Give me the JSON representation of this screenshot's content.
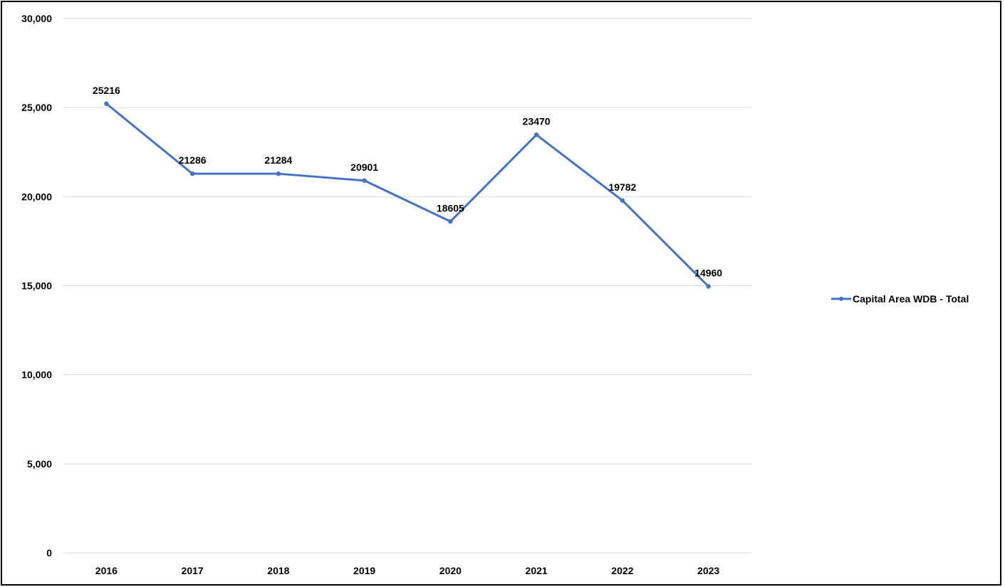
{
  "chart_data": {
    "type": "line",
    "title": "",
    "xlabel": "",
    "ylabel": "",
    "categories": [
      "2016",
      "2017",
      "2018",
      "2019",
      "2020",
      "2021",
      "2022",
      "2023"
    ],
    "series": [
      {
        "name": "Capital Area WDB - Total",
        "values": [
          25216,
          21286,
          21284,
          20901,
          18605,
          23470,
          19782,
          14960
        ],
        "color": "#4472C4"
      }
    ],
    "ylim": [
      0,
      30000
    ],
    "yticks": [
      0,
      5000,
      10000,
      15000,
      20000,
      25000,
      30000
    ],
    "ytick_labels": [
      "0",
      "5,000",
      "10,000",
      "15,000",
      "20,000",
      "25,000",
      "30,000"
    ],
    "data_labels": [
      "25216",
      "21286",
      "21284",
      "20901",
      "18605",
      "23470",
      "19782",
      "14960"
    ],
    "grid": true,
    "gridline_color": "#D9D9D9",
    "legend_placement": "right"
  }
}
